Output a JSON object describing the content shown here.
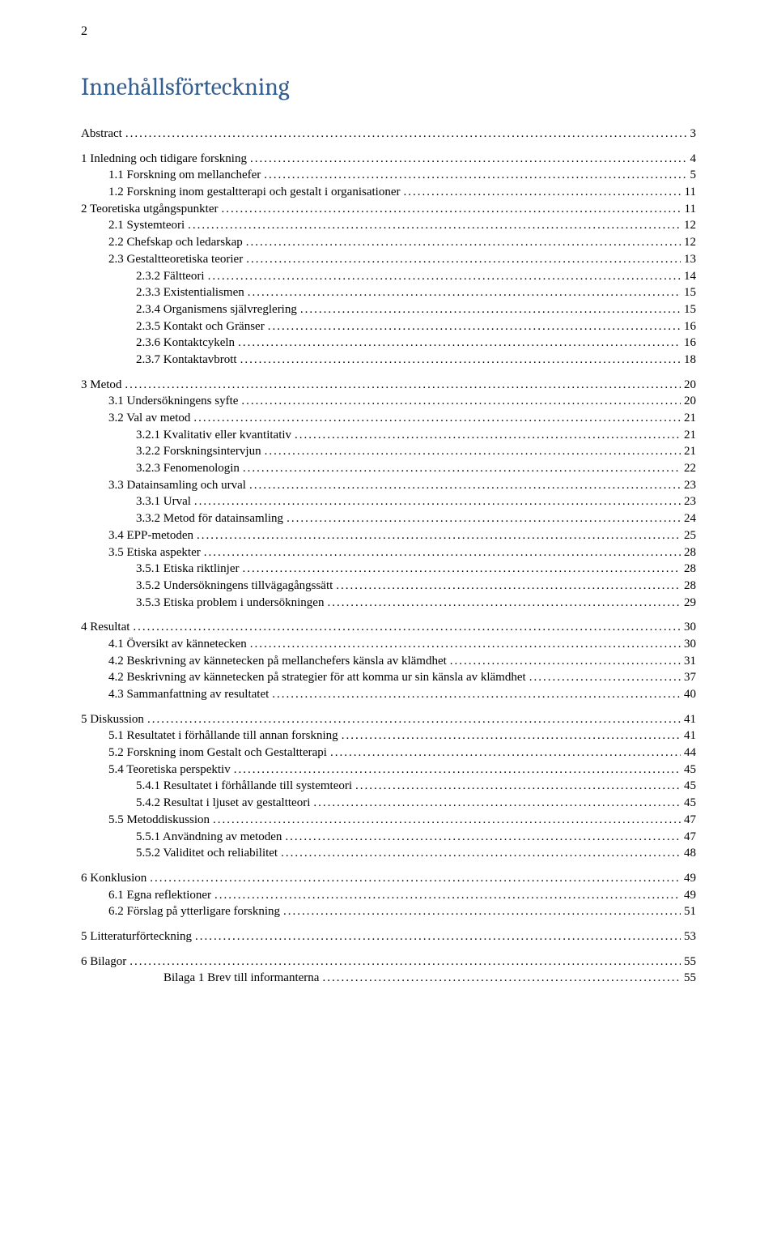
{
  "page_number": "2",
  "heading": "Innehållsförteckning",
  "colors": {
    "heading": "#365f91",
    "body_text": "#000000",
    "background": "#ffffff"
  },
  "typography": {
    "body_font": "Times New Roman",
    "body_size_pt": 11,
    "heading_font": "Cambria",
    "heading_size_pt": 22
  },
  "toc": [
    {
      "label": "Abstract",
      "page": "3",
      "indent": 0,
      "gap_before": false
    },
    {
      "label": "1 Inledning och tidigare forskning",
      "page": "4",
      "indent": 0,
      "gap_before": true
    },
    {
      "label": "1.1    Forskning om mellanchefer",
      "page": "5",
      "indent": 1,
      "gap_before": false
    },
    {
      "label": "1.2    Forskning inom gestaltterapi och gestalt i organisationer",
      "page": "11",
      "indent": 1,
      "gap_before": false
    },
    {
      "label": "2 Teoretiska utgångspunkter",
      "page": "11",
      "indent": 0,
      "gap_before": false
    },
    {
      "label": "2.1    Systemteori",
      "page": "12",
      "indent": 1,
      "gap_before": false
    },
    {
      "label": "2.2    Chefskap och ledarskap",
      "page": "12",
      "indent": 1,
      "gap_before": false
    },
    {
      "label": "2.3    Gestaltteoretiska teorier",
      "page": "13",
      "indent": 1,
      "gap_before": false
    },
    {
      "label": "2.3.2    Fältteori",
      "page": "14",
      "indent": 2,
      "gap_before": false
    },
    {
      "label": "2.3.3    Existentialismen",
      "page": "15",
      "indent": 2,
      "gap_before": false
    },
    {
      "label": "2.3.4    Organismens självreglering",
      "page": "15",
      "indent": 2,
      "gap_before": false
    },
    {
      "label": "2.3.5    Kontakt och Gränser",
      "page": "16",
      "indent": 2,
      "gap_before": false
    },
    {
      "label": "2.3.6    Kontaktcykeln",
      "page": "16",
      "indent": 2,
      "gap_before": false
    },
    {
      "label": "2.3.7    Kontaktavbrott",
      "page": "18",
      "indent": 2,
      "gap_before": false
    },
    {
      "label": "3 Metod",
      "page": "20",
      "indent": 0,
      "gap_before": true
    },
    {
      "label": "3.1    Undersökningens syfte",
      "page": "20",
      "indent": 1,
      "gap_before": false
    },
    {
      "label": "3.2    Val av metod",
      "page": "21",
      "indent": 1,
      "gap_before": false
    },
    {
      "label": "3.2.1    Kvalitativ eller kvantitativ",
      "page": "21",
      "indent": 2,
      "gap_before": false
    },
    {
      "label": "3.2.2    Forskningsintervjun",
      "page": "21",
      "indent": 2,
      "gap_before": false
    },
    {
      "label": "3.2.3    Fenomenologin",
      "page": "22",
      "indent": 2,
      "gap_before": false
    },
    {
      "label": "3.3    Datainsamling och urval",
      "page": "23",
      "indent": 1,
      "gap_before": false
    },
    {
      "label": "3.3.1    Urval",
      "page": "23",
      "indent": 2,
      "gap_before": false
    },
    {
      "label": "3.3.2    Metod för datainsamling",
      "page": "24",
      "indent": 2,
      "gap_before": false
    },
    {
      "label": "3.4    EPP-metoden",
      "page": "25",
      "indent": 1,
      "gap_before": false
    },
    {
      "label": "3.5    Etiska aspekter",
      "page": "28",
      "indent": 1,
      "gap_before": false
    },
    {
      "label": "3.5.1    Etiska riktlinjer",
      "page": "28",
      "indent": 2,
      "gap_before": false
    },
    {
      "label": "3.5.2    Undersökningens tillvägagångssätt",
      "page": "28",
      "indent": 2,
      "gap_before": false
    },
    {
      "label": "3.5.3    Etiska problem i undersökningen",
      "page": "29",
      "indent": 2,
      "gap_before": false
    },
    {
      "label": "4 Resultat",
      "page": "30",
      "indent": 0,
      "gap_before": true
    },
    {
      "label": "4.1    Översikt av kännetecken",
      "page": "30",
      "indent": 1,
      "gap_before": false
    },
    {
      "label": "4.2    Beskrivning av kännetecken på mellanchefers känsla av klämdhet",
      "page": "31",
      "indent": 1,
      "gap_before": false
    },
    {
      "label": "4.2    Beskrivning av kännetecken på strategier för att komma ur sin känsla av klämdhet",
      "page": "37",
      "indent": 1,
      "gap_before": false
    },
    {
      "label": "4.3    Sammanfattning av resultatet",
      "page": "40",
      "indent": 1,
      "gap_before": false
    },
    {
      "label": "5 Diskussion",
      "page": "41",
      "indent": 0,
      "gap_before": true
    },
    {
      "label": "5.1    Resultatet i förhållande till annan forskning",
      "page": "41",
      "indent": 1,
      "gap_before": false
    },
    {
      "label": "5.2    Forskning inom Gestalt och Gestaltterapi",
      "page": "44",
      "indent": 1,
      "gap_before": false
    },
    {
      "label": "5.4    Teoretiska perspektiv",
      "page": "45",
      "indent": 1,
      "gap_before": false
    },
    {
      "label": "5.4.1    Resultatet i förhållande till systemteori",
      "page": "45",
      "indent": 2,
      "gap_before": false
    },
    {
      "label": "5.4.2    Resultat i ljuset av gestaltteori",
      "page": "45",
      "indent": 2,
      "gap_before": false
    },
    {
      "label": "5.5    Metoddiskussion",
      "page": "47",
      "indent": 1,
      "gap_before": false
    },
    {
      "label": "5.5.1    Användning av metoden",
      "page": "47",
      "indent": 2,
      "gap_before": false
    },
    {
      "label": "5.5.2    Validitet och reliabilitet",
      "page": "48",
      "indent": 2,
      "gap_before": false
    },
    {
      "label": "6 Konklusion",
      "page": "49",
      "indent": 0,
      "gap_before": true
    },
    {
      "label": "6.1    Egna reflektioner",
      "page": "49",
      "indent": 1,
      "gap_before": false
    },
    {
      "label": "6.2    Förslag på ytterligare forskning",
      "page": "51",
      "indent": 1,
      "gap_before": false
    },
    {
      "label": "5      Litteraturförteckning",
      "page": "53",
      "indent": 0,
      "gap_before": true
    },
    {
      "label": "6      Bilagor",
      "page": "55",
      "indent": 0,
      "gap_before": true
    },
    {
      "label": "Bilaga 1 Brev till informanterna",
      "page": "55",
      "indent": 3,
      "gap_before": false
    }
  ]
}
